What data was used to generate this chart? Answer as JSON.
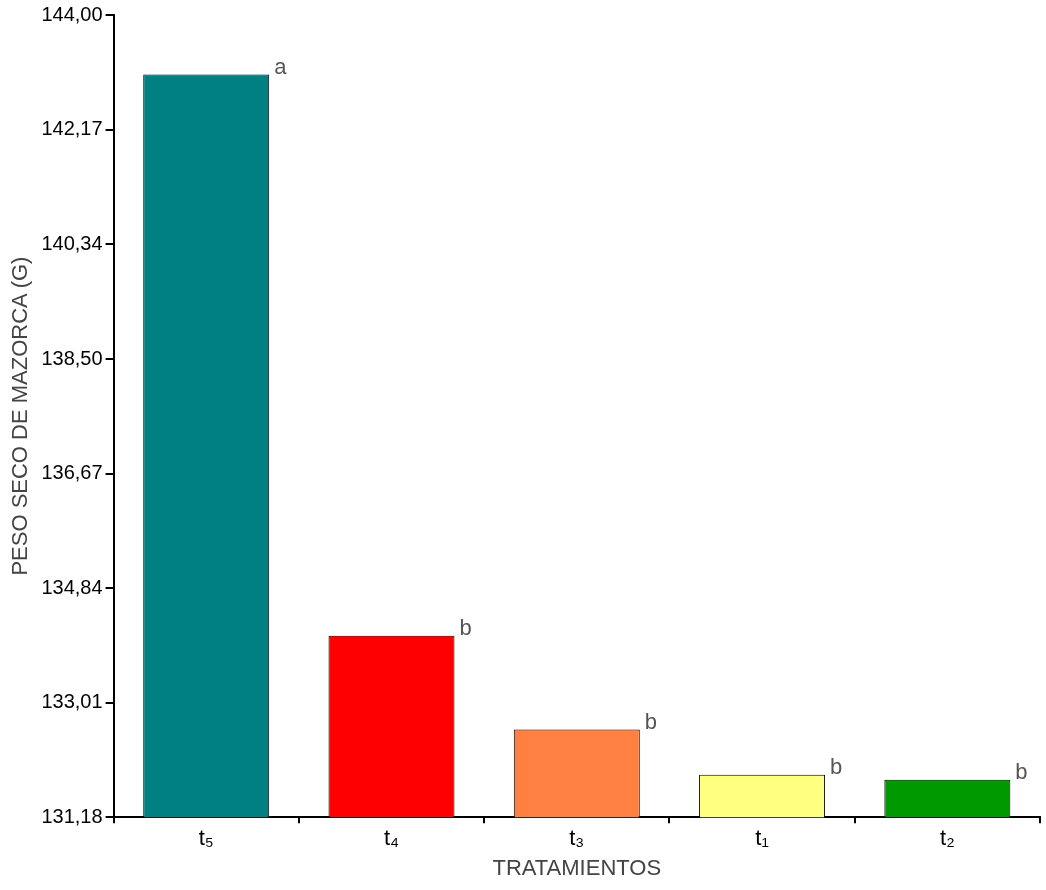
{
  "chart_data": {
    "type": "bar",
    "xlabel": "TRATAMIENTOS",
    "ylabel": "PESO SECO DE MAZORCA (G)",
    "categories": [
      "t₅",
      "t₄",
      "t₃",
      "t₁",
      "t₂"
    ],
    "values": [
      143.05,
      134.08,
      132.58,
      131.86,
      131.78
    ],
    "colors": [
      "#008080",
      "#ff0000",
      "#ff8040",
      "#ffff80",
      "#009900"
    ],
    "ylim": [
      131.18,
      144
    ],
    "yticks": [
      {
        "value": 131.18,
        "label": "131,18"
      },
      {
        "value": 133.01,
        "label": "133,01"
      },
      {
        "value": 134.84,
        "label": "134,84"
      },
      {
        "value": 136.67,
        "label": "136,67"
      },
      {
        "value": 138.5,
        "label": "138,50"
      },
      {
        "value": 140.34,
        "label": "140,34"
      },
      {
        "value": 142.17,
        "label": "142,17"
      },
      {
        "value": 144,
        "label": "144,00"
      }
    ],
    "grid": false,
    "legend": false,
    "annotations": [
      "a",
      "b",
      "b",
      "b",
      "b"
    ]
  }
}
